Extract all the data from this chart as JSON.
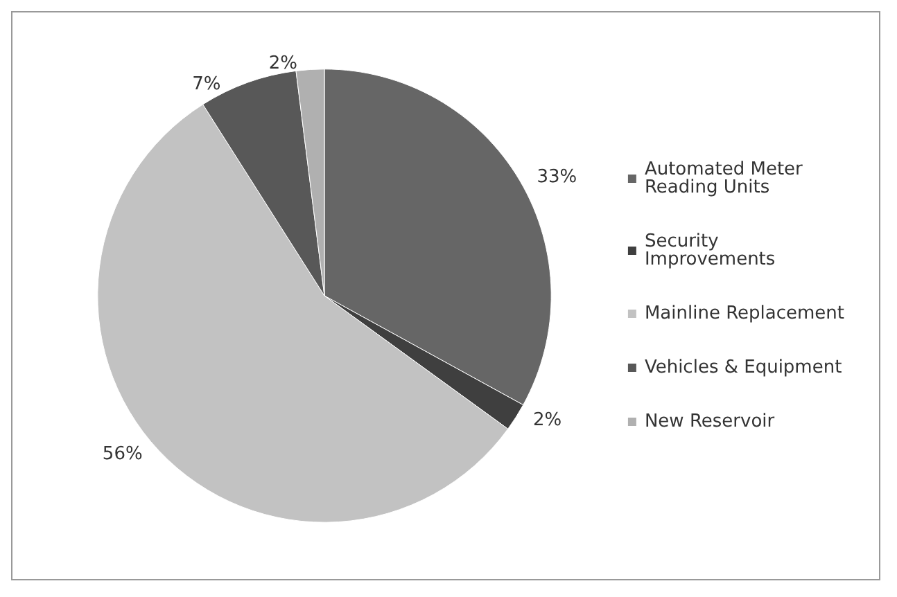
{
  "chart_data": {
    "type": "pie",
    "categories": [
      "Automated Meter Reading Units",
      "Security Improvements",
      "Mainline Replacement",
      "Vehicles & Equipment",
      "New Reservoir"
    ],
    "values": [
      33,
      2,
      56,
      7,
      2
    ],
    "colors": [
      "#666666",
      "#3f3f3f",
      "#c2c2c2",
      "#585858",
      "#b0b0b0"
    ],
    "value_labels": [
      "33%",
      "2%",
      "56%",
      "7%",
      "2%"
    ],
    "legend": "right"
  }
}
